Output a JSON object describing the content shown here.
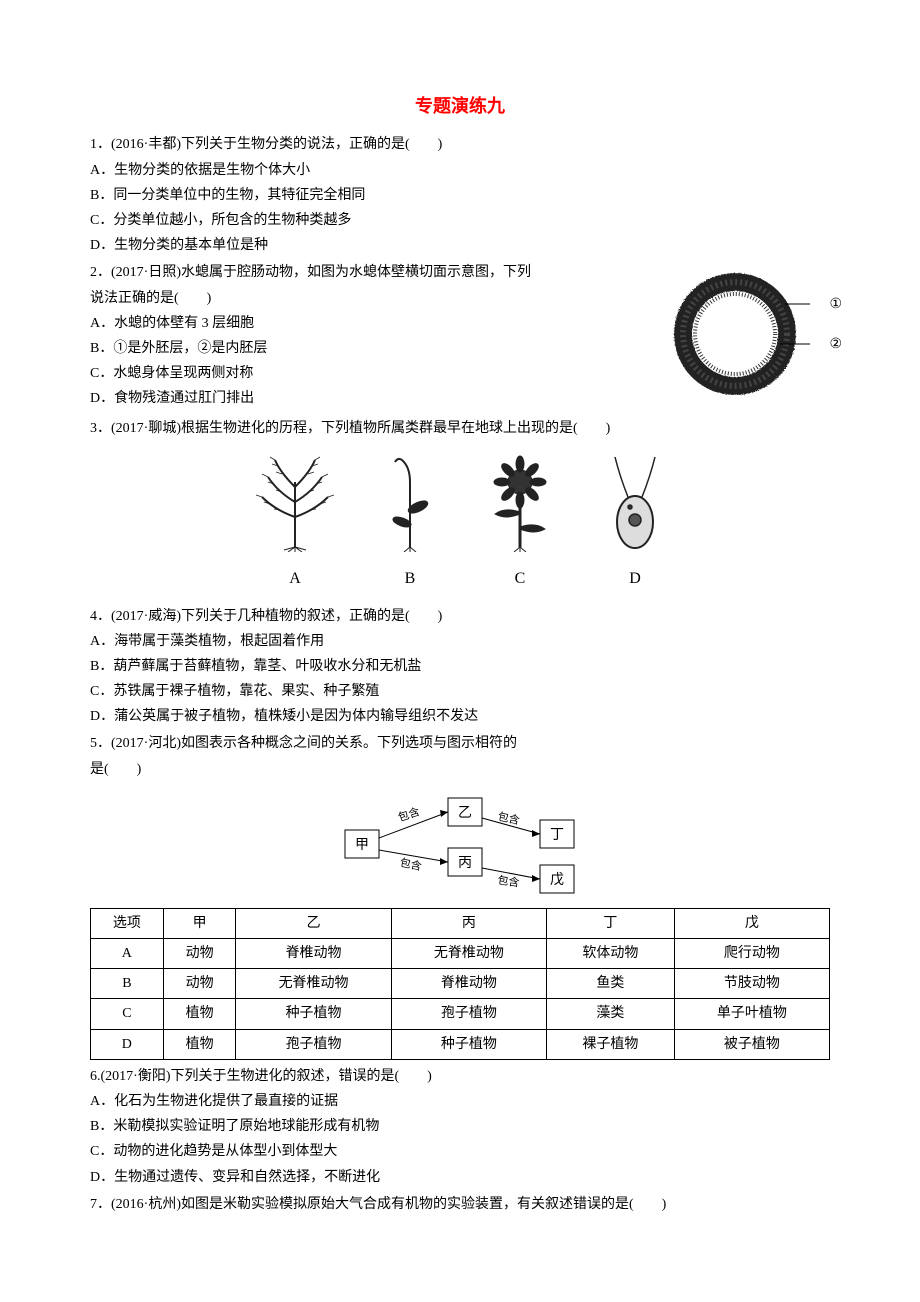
{
  "title": "专题演练九",
  "q1": {
    "stem": "1．(2016·丰都)下列关于生物分类的说法，正确的是(　　)",
    "A": "A．生物分类的依据是生物个体大小",
    "B": "B．同一分类单位中的生物，其特征完全相同",
    "C": "C．分类单位越小，所包含的生物种类越多",
    "D": "D．生物分类的基本单位是种"
  },
  "q2": {
    "stem1": "2．(2017·日照)水螅属于腔肠动物，如图为水螅体壁横切面示意图，下列",
    "stem2": "说法正确的是(　　)",
    "A": "A．水螅的体壁有 3 层细胞",
    "B": "B．①是外胚层，②是内胚层",
    "C": "C．水螅身体呈现两侧对称",
    "D": "D．食物残渣通过肛门排出",
    "label1": "①",
    "label2": "②"
  },
  "q3": {
    "stem": "3．(2017·聊城)根据生物进化的历程，下列植物所属类群最早在地球上出现的是(　　)",
    "labels": [
      "A",
      "B",
      "C",
      "D"
    ]
  },
  "q4": {
    "stem": "4．(2017·威海)下列关于几种植物的叙述，正确的是(　　)",
    "A": "A．海带属于藻类植物，根起固着作用",
    "B": "B．葫芦藓属于苔藓植物，靠茎、叶吸收水分和无机盐",
    "C": "C．苏铁属于裸子植物，靠花、果实、种子繁殖",
    "D": "D．蒲公英属于被子植物，植株矮小是因为体内输导组织不发达"
  },
  "q5": {
    "stem1": "5．(2017·河北)如图表示各种概念之间的关系。下列选项与图示相符的",
    "stem2": "是(　　)",
    "tree": {
      "甲": "甲",
      "乙": "乙",
      "丙": "丙",
      "丁": "丁",
      "戊": "戊",
      "包含": "包含"
    },
    "table": {
      "headers": [
        "选项",
        "甲",
        "乙",
        "丙",
        "丁",
        "戊"
      ],
      "rows": [
        [
          "A",
          "动物",
          "脊椎动物",
          "无脊椎动物",
          "软体动物",
          "爬行动物"
        ],
        [
          "B",
          "动物",
          "无脊椎动物",
          "脊椎动物",
          "鱼类",
          "节肢动物"
        ],
        [
          "C",
          "植物",
          "种子植物",
          "孢子植物",
          "藻类",
          "单子叶植物"
        ],
        [
          "D",
          "植物",
          "孢子植物",
          "种子植物",
          "裸子植物",
          "被子植物"
        ]
      ]
    }
  },
  "q6": {
    "stem": "6.(2017·衡阳)下列关于生物进化的叙述，错误的是(　　)",
    "A": "A．化石为生物进化提供了最直接的证据",
    "B": "B．米勒模拟实验证明了原始地球能形成有机物",
    "C": "C．动物的进化趋势是从体型小到体型大",
    "D": "D．生物通过遗传、变异和自然选择，不断进化"
  },
  "q7": {
    "stem": "7．(2016·杭州)如图是米勒实验模拟原始大气合成有机物的实验装置，有关叙述错误的是(　　)"
  },
  "colors": {
    "title": "#ff0000",
    "text": "#000000",
    "background": "#ffffff",
    "border": "#000000"
  }
}
